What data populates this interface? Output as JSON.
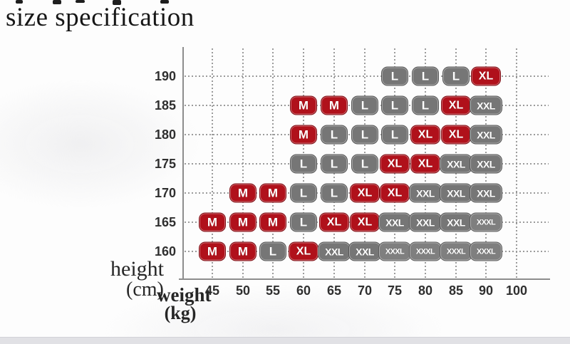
{
  "page": {
    "title_text": "size specification"
  },
  "chart_data": {
    "type": "scatter",
    "title": "size specification",
    "xlabel": "weight (kg)",
    "ylabel": "height (cm)",
    "x_tick_labels": [
      "45",
      "50",
      "55",
      "60",
      "65",
      "70",
      "75",
      "80",
      "85",
      "90",
      "100"
    ],
    "y_tick_labels": [
      "190",
      "185",
      "180",
      "175",
      "170",
      "165",
      "160"
    ],
    "x_range": [
      45,
      100
    ],
    "y_range": [
      160,
      190
    ],
    "grid": true,
    "legend": "none",
    "size_colors": {
      "M": "#b0111b",
      "L": "#767676",
      "XL": "#b0111b",
      "XXL": "#767676",
      "XXXL": "#7f7f7f"
    },
    "axis_titles": {
      "y_line1": "height",
      "y_line2": "(cm)",
      "x_line1": "weight",
      "x_line2": "(kg)"
    },
    "rows": [
      {
        "height": "190",
        "cells": [
          {
            "weight": "75",
            "size": "L"
          },
          {
            "weight": "80",
            "size": "L"
          },
          {
            "weight": "85",
            "size": "L"
          },
          {
            "weight": "90",
            "size": "XL"
          }
        ]
      },
      {
        "height": "185",
        "cells": [
          {
            "weight": "60",
            "size": "M"
          },
          {
            "weight": "65",
            "size": "M"
          },
          {
            "weight": "70",
            "size": "L"
          },
          {
            "weight": "75",
            "size": "L"
          },
          {
            "weight": "80",
            "size": "L"
          },
          {
            "weight": "85",
            "size": "XL"
          },
          {
            "weight": "90",
            "size": "XXL"
          }
        ]
      },
      {
        "height": "180",
        "cells": [
          {
            "weight": "60",
            "size": "M"
          },
          {
            "weight": "65",
            "size": "L"
          },
          {
            "weight": "70",
            "size": "L"
          },
          {
            "weight": "75",
            "size": "L"
          },
          {
            "weight": "80",
            "size": "XL"
          },
          {
            "weight": "85",
            "size": "XL"
          },
          {
            "weight": "90",
            "size": "XXL"
          }
        ]
      },
      {
        "height": "175",
        "cells": [
          {
            "weight": "60",
            "size": "L"
          },
          {
            "weight": "65",
            "size": "L"
          },
          {
            "weight": "70",
            "size": "L"
          },
          {
            "weight": "75",
            "size": "XL"
          },
          {
            "weight": "80",
            "size": "XL"
          },
          {
            "weight": "85",
            "size": "XXL"
          },
          {
            "weight": "90",
            "size": "XXL"
          }
        ]
      },
      {
        "height": "170",
        "cells": [
          {
            "weight": "50",
            "size": "M"
          },
          {
            "weight": "55",
            "size": "M"
          },
          {
            "weight": "60",
            "size": "L"
          },
          {
            "weight": "65",
            "size": "L"
          },
          {
            "weight": "70",
            "size": "XL"
          },
          {
            "weight": "75",
            "size": "XL"
          },
          {
            "weight": "80",
            "size": "XXL"
          },
          {
            "weight": "85",
            "size": "XXL"
          },
          {
            "weight": "90",
            "size": "XXL"
          }
        ]
      },
      {
        "height": "165",
        "cells": [
          {
            "weight": "45",
            "size": "M"
          },
          {
            "weight": "50",
            "size": "M"
          },
          {
            "weight": "55",
            "size": "M"
          },
          {
            "weight": "60",
            "size": "L"
          },
          {
            "weight": "65",
            "size": "XL"
          },
          {
            "weight": "70",
            "size": "XL"
          },
          {
            "weight": "75",
            "size": "XXL"
          },
          {
            "weight": "80",
            "size": "XXL"
          },
          {
            "weight": "85",
            "size": "XXL"
          },
          {
            "weight": "90",
            "size": "XXXL"
          }
        ]
      },
      {
        "height": "160",
        "cells": [
          {
            "weight": "45",
            "size": "M"
          },
          {
            "weight": "50",
            "size": "M"
          },
          {
            "weight": "55",
            "size": "L"
          },
          {
            "weight": "60",
            "size": "XL"
          },
          {
            "weight": "65",
            "size": "XXL"
          },
          {
            "weight": "70",
            "size": "XXL"
          },
          {
            "weight": "75",
            "size": "XXXL"
          },
          {
            "weight": "80",
            "size": "XXXL"
          },
          {
            "weight": "85",
            "size": "XXXL"
          },
          {
            "weight": "90",
            "size": "XXXL"
          }
        ]
      }
    ]
  }
}
